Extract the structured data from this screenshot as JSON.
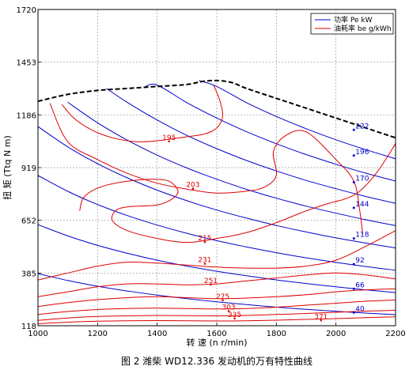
{
  "chart_data": {
    "type": "line",
    "caption": "图 2  潍柴 WD12.336 发动机的万有特性曲线",
    "xlabel": "转  速 (n r/min)",
    "ylabel": "扭  矩 (Ttq N m)",
    "xlim": [
      1000,
      2200
    ],
    "ylim": [
      118,
      1720
    ],
    "xticks": [
      "1000",
      "1200",
      "1400",
      "1600",
      "1800",
      "2000",
      "2200"
    ],
    "yticks": [
      "118",
      "385",
      "652",
      "919",
      "1186",
      "1453",
      "1720"
    ],
    "grid": true,
    "legend_position": "top-right",
    "legend": [
      {
        "label": "功率 Pe kW",
        "color": "#0000cc"
      },
      {
        "label": "油耗率 be g/kWh",
        "color": "#dd0000"
      }
    ],
    "external_characteristic": {
      "color": "#000000",
      "style": "dashed",
      "x": [
        1000,
        1100,
        1200,
        1300,
        1400,
        1500,
        1550,
        1600,
        1650,
        1700,
        1800,
        1900,
        2000,
        2100,
        2200
      ],
      "y": [
        1255,
        1290,
        1310,
        1320,
        1330,
        1340,
        1355,
        1360,
        1350,
        1320,
        1270,
        1220,
        1170,
        1120,
        1070
      ]
    },
    "power_series": [
      {
        "label": "222",
        "color": "#0000cc",
        "label_x": 2060,
        "label_y": 1110,
        "x": [
          1540,
          1600,
          1700,
          1800,
          1900,
          2000,
          2100,
          2200
        ],
        "y": [
          1360,
          1330,
          1248,
          1178,
          1116,
          1060,
          1010,
          964
        ]
      },
      {
        "label": "196",
        "color": "#0000cc",
        "label_x": 2060,
        "label_y": 980,
        "x": [
          1360,
          1400,
          1500,
          1600,
          1700,
          1800,
          1900,
          2000,
          2100,
          2200
        ],
        "y": [
          1330,
          1337,
          1248,
          1170,
          1101,
          1040,
          985,
          936,
          891,
          851
        ]
      },
      {
        "label": "170",
        "color": "#0000cc",
        "label_x": 2060,
        "label_y": 845,
        "x": [
          1230,
          1300,
          1400,
          1500,
          1600,
          1700,
          1800,
          1900,
          2000,
          2100,
          2200
        ],
        "y": [
          1320,
          1249,
          1160,
          1082,
          1015,
          955,
          902,
          854,
          812,
          773,
          738
        ]
      },
      {
        "label": "144",
        "color": "#0000cc",
        "label_x": 2060,
        "label_y": 715,
        "x": [
          1100,
          1200,
          1300,
          1400,
          1500,
          1600,
          1700,
          1800,
          1900,
          2000,
          2100,
          2200
        ],
        "y": [
          1250,
          1146,
          1058,
          982,
          917,
          860,
          809,
          764,
          724,
          688,
          655,
          625
        ]
      },
      {
        "label": "118",
        "color": "#0000cc",
        "label_x": 2060,
        "label_y": 560,
        "x": [
          1000,
          1100,
          1200,
          1300,
          1400,
          1500,
          1600,
          1700,
          1800,
          1900,
          2000,
          2100,
          2200
        ],
        "y": [
          1127,
          1024,
          939,
          867,
          805,
          751,
          704,
          663,
          626,
          593,
          563,
          537,
          512
        ]
      },
      {
        "label": "92",
        "color": "#0000cc",
        "label_x": 2060,
        "label_y": 430,
        "x": [
          1000,
          1100,
          1200,
          1300,
          1400,
          1500,
          1600,
          1700,
          1800,
          1900,
          2000,
          2100,
          2200
        ],
        "y": [
          879,
          799,
          732,
          676,
          628,
          586,
          549,
          517,
          488,
          462,
          439,
          418,
          399
        ]
      },
      {
        "label": "66",
        "color": "#0000cc",
        "label_x": 2060,
        "label_y": 305,
        "x": [
          1000,
          1100,
          1200,
          1300,
          1400,
          1500,
          1600,
          1700,
          1800,
          1900,
          2000,
          2100,
          2200
        ],
        "y": [
          630,
          573,
          525,
          485,
          450,
          420,
          394,
          371,
          350,
          332,
          315,
          300,
          286
        ]
      },
      {
        "label": "40",
        "color": "#0000cc",
        "label_x": 2060,
        "label_y": 185,
        "x": [
          1000,
          1100,
          1200,
          1300,
          1400,
          1500,
          1600,
          1700,
          1800,
          1900,
          2000,
          2100,
          2200
        ],
        "y": [
          382,
          347,
          318,
          294,
          273,
          255,
          239,
          225,
          212,
          201,
          191,
          182,
          174
        ]
      }
    ],
    "bsfc_series": [
      {
        "label": "195",
        "color": "#dd0000",
        "label_x": 1440,
        "label_y": 1060,
        "x": [
          1590,
          1610,
          1620,
          1600,
          1560,
          1500,
          1450,
          1400,
          1330,
          1250,
          1180,
          1120,
          1080
        ],
        "y": [
          1335,
          1260,
          1180,
          1120,
          1090,
          1075,
          1065,
          1055,
          1050,
          1070,
          1110,
          1170,
          1240
        ]
      },
      {
        "label": "203",
        "color": "#dd0000",
        "label_x": 1520,
        "label_y": 820,
        "x": [
          1040,
          1100,
          1200,
          1300,
          1400,
          1500,
          1600,
          1700,
          1760,
          1800,
          1790,
          1830,
          1900,
          2000,
          2060,
          2080,
          2090
        ],
        "y": [
          1245,
          1050,
          960,
          890,
          840,
          810,
          790,
          800,
          820,
          880,
          1000,
          1080,
          1100,
          960,
          850,
          700,
          580
        ]
      },
      {
        "label": "215",
        "color": "#dd0000",
        "label_x": 1560,
        "label_y": 550,
        "x": [
          2200,
          2140,
          2080,
          2030,
          1980,
          1900,
          1800,
          1700,
          1600,
          1500,
          1400,
          1300,
          1250,
          1260,
          1300,
          1400,
          1450,
          1470,
          1440,
          1380,
          1300,
          1230,
          1180,
          1150,
          1140
        ],
        "y": [
          1040,
          900,
          800,
          760,
          740,
          700,
          640,
          590,
          560,
          540,
          560,
          600,
          650,
          700,
          720,
          730,
          760,
          800,
          850,
          860,
          850,
          830,
          800,
          760,
          700
        ]
      },
      {
        "label": "231",
        "color": "#dd0000",
        "label_x": 1560,
        "label_y": 440,
        "x": [
          1000,
          1100,
          1200,
          1300,
          1400,
          1500,
          1600,
          1700,
          1800,
          1900,
          2000,
          2100,
          2200
        ],
        "y": [
          350,
          385,
          420,
          440,
          435,
          425,
          415,
          410,
          410,
          420,
          450,
          520,
          600
        ]
      },
      {
        "label": "251",
        "color": "#dd0000",
        "label_x": 1580,
        "label_y": 335,
        "x": [
          1000,
          1100,
          1200,
          1300,
          1400,
          1500,
          1600,
          1700,
          1800,
          1900,
          2000,
          2100,
          2200
        ],
        "y": [
          265,
          290,
          315,
          330,
          330,
          325,
          330,
          345,
          360,
          375,
          385,
          375,
          355
        ]
      },
      {
        "label": "275",
        "color": "#dd0000",
        "label_x": 1620,
        "label_y": 255,
        "x": [
          1000,
          1100,
          1200,
          1300,
          1400,
          1500,
          1600,
          1700,
          1800,
          1900,
          2000,
          2100,
          2200
        ],
        "y": [
          215,
          235,
          250,
          260,
          265,
          260,
          255,
          258,
          265,
          275,
          290,
          300,
          305
        ]
      },
      {
        "label": "303",
        "color": "#dd0000",
        "label_x": 1640,
        "label_y": 200,
        "x": [
          1000,
          1100,
          1200,
          1300,
          1400,
          1500,
          1600,
          1700,
          1800,
          1900,
          2000,
          2100,
          2200
        ],
        "y": [
          175,
          190,
          200,
          205,
          207,
          205,
          203,
          205,
          212,
          222,
          232,
          242,
          248
        ]
      },
      {
        "label": "335",
        "color": "#dd0000",
        "label_x": 1660,
        "label_y": 163,
        "x": [
          1000,
          1100,
          1200,
          1300,
          1400,
          1500,
          1600,
          1700,
          1800,
          1900,
          2000,
          2100,
          2200
        ],
        "y": [
          145,
          157,
          165,
          168,
          170,
          169,
          168,
          170,
          175,
          180,
          186,
          192,
          196
        ]
      },
      {
        "label": "371",
        "color": "#dd0000",
        "label_x": 1950,
        "label_y": 153,
        "x": [
          1000,
          1100,
          1200,
          1300,
          1400,
          1500,
          1600,
          1700,
          1800,
          1900,
          2000,
          2100,
          2200
        ],
        "y": [
          128,
          136,
          141,
          143,
          144,
          143,
          142,
          143,
          146,
          150,
          154,
          159,
          163
        ]
      }
    ]
  }
}
